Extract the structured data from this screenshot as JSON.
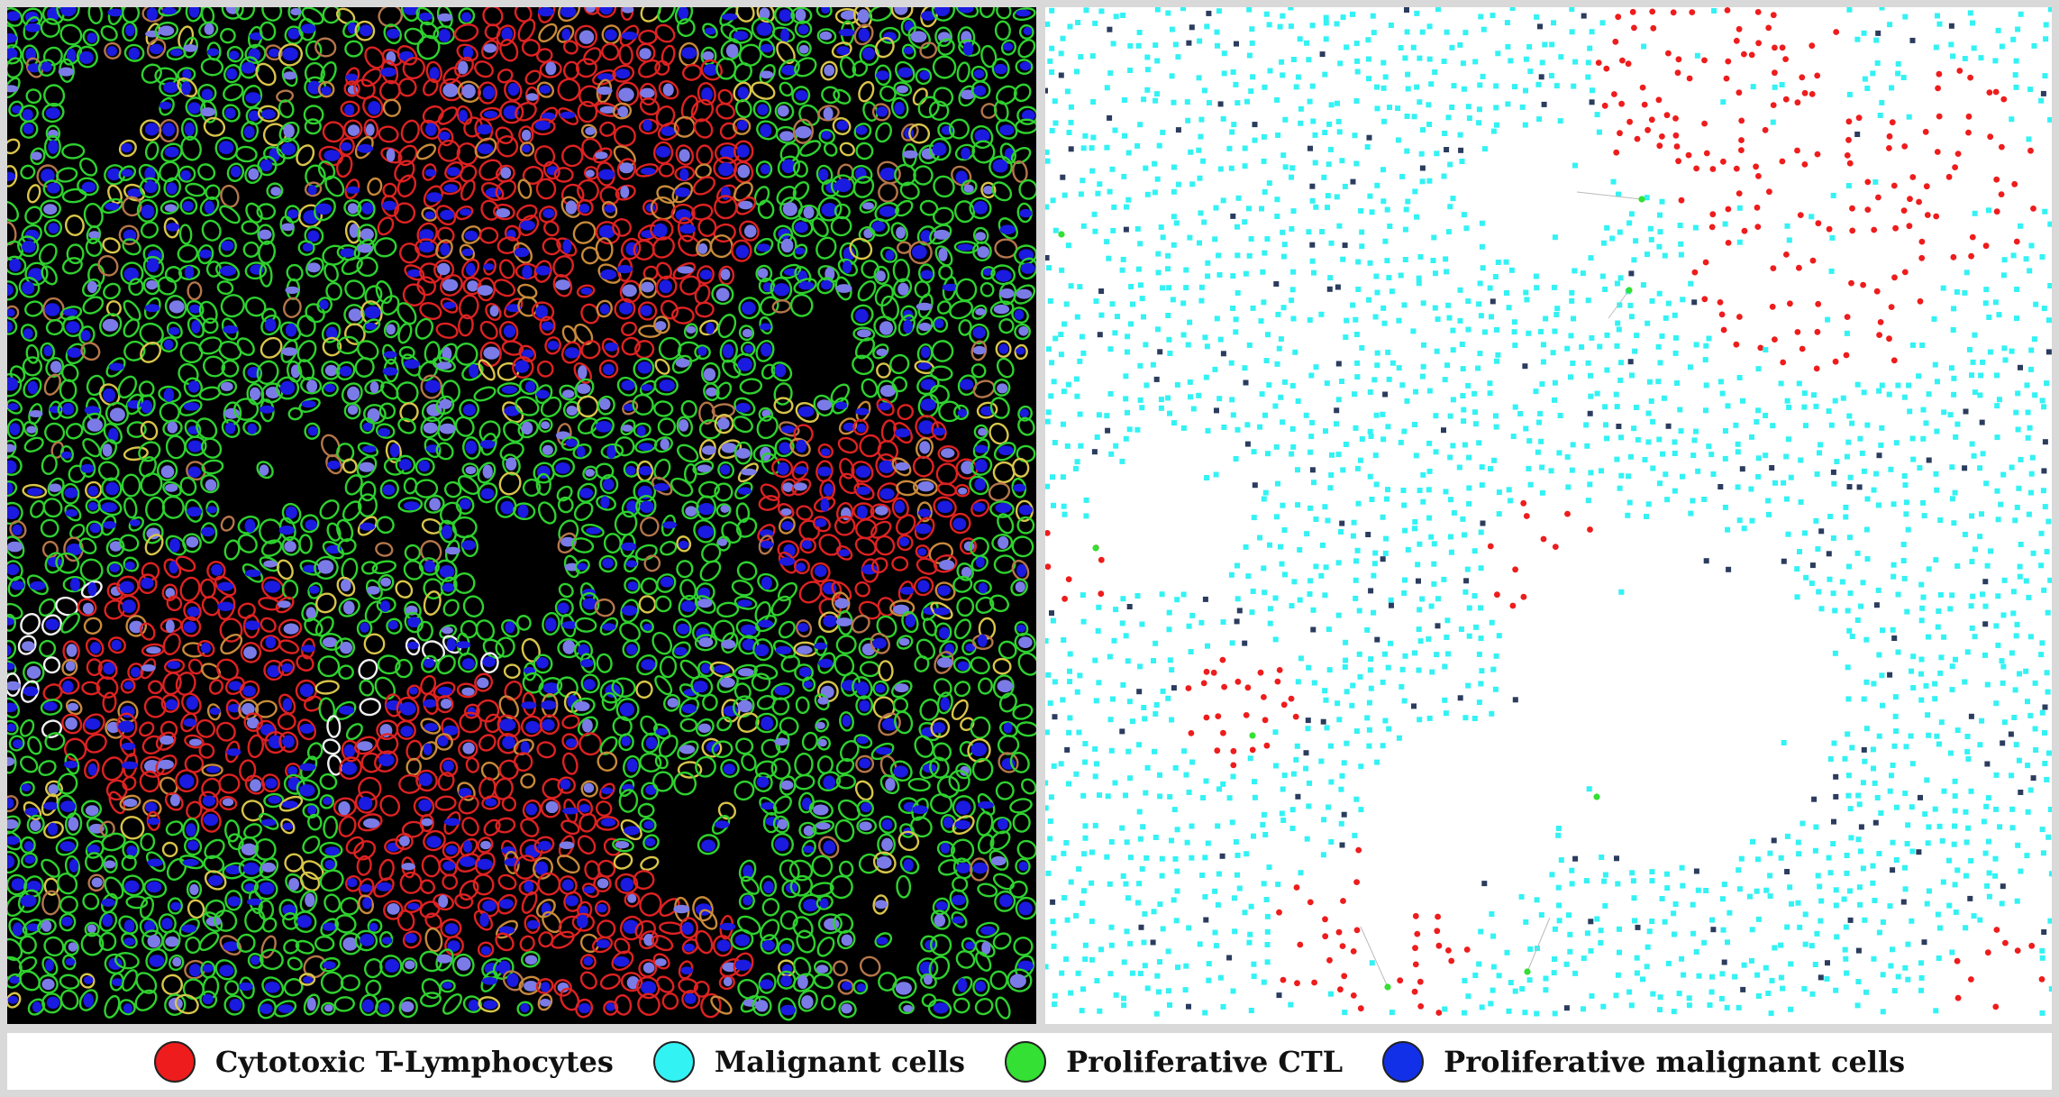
{
  "colors": {
    "ctl": "#ee1c1c",
    "malignant": "#33f2f4",
    "proliferative_ctl": "#33e033",
    "proliferative_malignant": "#1230e8",
    "tissue_background": "#000000",
    "map_background": "#ffffff",
    "segmentation_outline_green": "#2fd12f",
    "segmentation_outline_red": "#dd2222",
    "nucleus_blue": "#1a1ae0",
    "nucleus_lavender": "#7b7be8",
    "map_dark_square": "#2b3c5e"
  },
  "legend": [
    {
      "label": "Cytotoxic T-Lymphocytes",
      "color": "#ee1c1c"
    },
    {
      "label": "Malignant cells",
      "color": "#33f2f4"
    },
    {
      "label": "Proliferative CTL",
      "color": "#33e033"
    },
    {
      "label": "Proliferative malignant cells",
      "color": "#1230e8"
    }
  ]
}
